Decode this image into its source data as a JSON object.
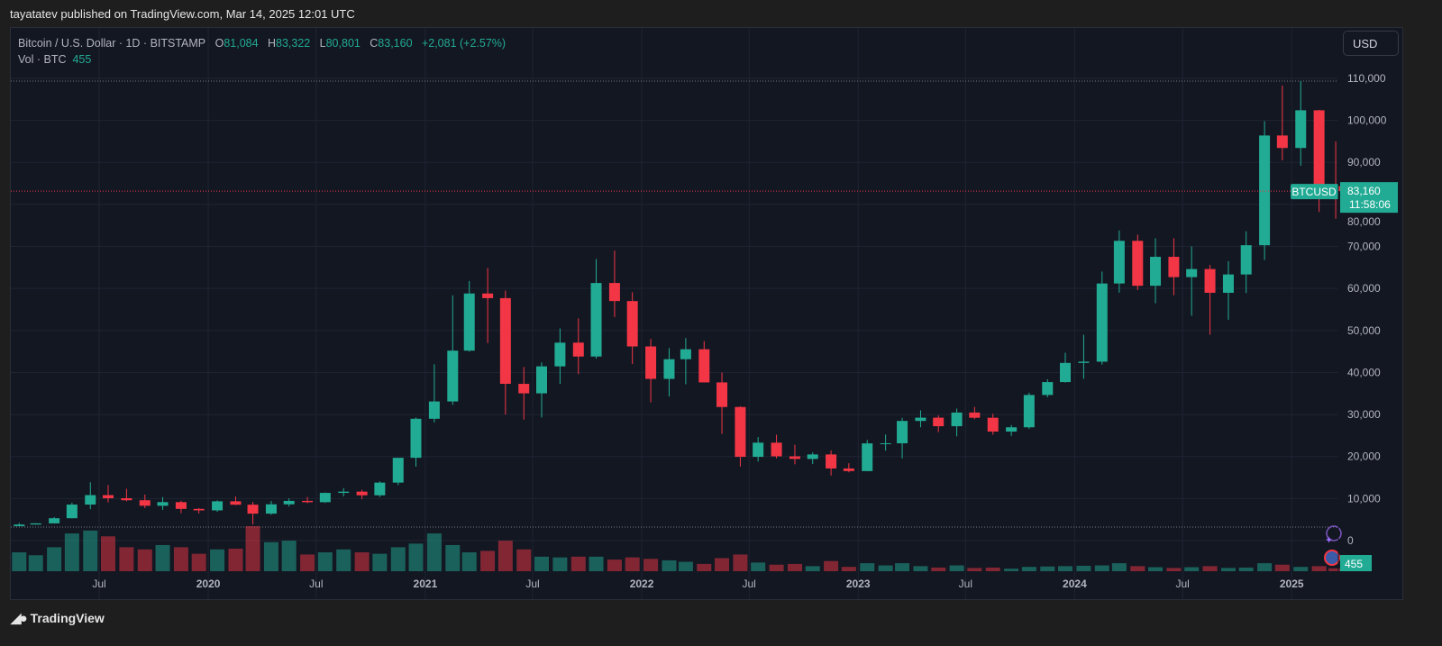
{
  "header": {
    "published": "tayatatev published on TradingView.com, Mar 14, 2025 12:01 UTC"
  },
  "legend": {
    "symbol": "Bitcoin / U.S. Dollar · 1D · BITSTAMP",
    "o_label": "O",
    "o": "81,084",
    "h_label": "H",
    "h": "83,322",
    "l_label": "L",
    "l": "80,801",
    "c_label": "C",
    "c": "83,160",
    "change": "+2,081 (+2.57%)",
    "vol_label": "Vol · BTC",
    "vol": "455"
  },
  "currency_button": "USD",
  "price_tag": {
    "symbol": "BTCUSD",
    "price": "83,160",
    "countdown": "11:58:06"
  },
  "volume_tag": "455",
  "footer": {
    "brand": "TradingView"
  },
  "colors": {
    "up": "#22ab94",
    "down": "#f23645",
    "background": "#131722",
    "grid": "#1f2433"
  },
  "chart_data": {
    "type": "candlestick",
    "yticks": [
      "110,000",
      "100,000",
      "90,000",
      "80,000",
      "70,000",
      "60,000",
      "50,000",
      "40,000",
      "30,000",
      "20,000",
      "10,000",
      "0"
    ],
    "ytick_values": [
      110000,
      100000,
      90000,
      80000,
      70000,
      60000,
      50000,
      40000,
      30000,
      20000,
      10000,
      0
    ],
    "xticks": [
      {
        "label": "Jul",
        "date": "2019-07"
      },
      {
        "label": "2020",
        "date": "2020-01"
      },
      {
        "label": "Jul",
        "date": "2020-07"
      },
      {
        "label": "2021",
        "date": "2021-01"
      },
      {
        "label": "Jul",
        "date": "2021-07"
      },
      {
        "label": "2022",
        "date": "2022-01"
      },
      {
        "label": "Jul",
        "date": "2022-07"
      },
      {
        "label": "2023",
        "date": "2023-01"
      },
      {
        "label": "Jul",
        "date": "2023-07"
      },
      {
        "label": "2024",
        "date": "2024-01"
      },
      {
        "label": "Jul",
        "date": "2024-07"
      },
      {
        "label": "2025",
        "date": "2025-01"
      }
    ],
    "ylim": [
      0,
      110000
    ],
    "grid": true,
    "last_price": 83160,
    "high_line": 109350,
    "series_note_columns": [
      "month",
      "open",
      "high",
      "low",
      "close",
      "volume"
    ],
    "ohlc": [
      [
        "2019-02",
        3437,
        4200,
        3400,
        3820,
        260
      ],
      [
        "2019-03",
        3820,
        4100,
        3850,
        4100,
        220
      ],
      [
        "2019-04",
        4100,
        5600,
        4080,
        5320,
        330
      ],
      [
        "2019-05",
        5320,
        9000,
        5300,
        8570,
        520
      ],
      [
        "2019-06",
        8570,
        13880,
        7480,
        10820,
        560
      ],
      [
        "2019-07",
        10820,
        13200,
        9080,
        10080,
        480
      ],
      [
        "2019-08",
        10080,
        12320,
        9350,
        9600,
        330
      ],
      [
        "2019-09",
        9600,
        10950,
        7730,
        8290,
        300
      ],
      [
        "2019-10",
        8290,
        10370,
        7300,
        9150,
        360
      ],
      [
        "2019-11",
        9150,
        9500,
        6520,
        7540,
        330
      ],
      [
        "2019-12",
        7540,
        7750,
        6430,
        7190,
        240
      ],
      [
        "2020-01",
        7190,
        9580,
        6860,
        9350,
        300
      ],
      [
        "2020-02",
        9350,
        10500,
        8450,
        8540,
        310
      ],
      [
        "2020-03",
        8540,
        9190,
        3850,
        6410,
        620
      ],
      [
        "2020-04",
        6410,
        9460,
        6150,
        8630,
        400
      ],
      [
        "2020-05",
        8630,
        10060,
        8100,
        9450,
        420
      ],
      [
        "2020-06",
        9450,
        10380,
        8900,
        9140,
        230
      ],
      [
        "2020-07",
        9140,
        11440,
        8980,
        11350,
        260
      ],
      [
        "2020-08",
        11350,
        12480,
        10520,
        11650,
        300
      ],
      [
        "2020-09",
        11650,
        12090,
        9880,
        10780,
        260
      ],
      [
        "2020-10",
        10780,
        14100,
        10380,
        13800,
        240
      ],
      [
        "2020-11",
        13800,
        19480,
        13200,
        19700,
        330
      ],
      [
        "2020-12",
        19700,
        29300,
        17600,
        28990,
        380
      ],
      [
        "2021-01",
        28990,
        41950,
        28130,
        33110,
        520
      ],
      [
        "2021-02",
        33110,
        58350,
        32300,
        45200,
        360
      ],
      [
        "2021-03",
        45200,
        61780,
        44950,
        58800,
        260
      ],
      [
        "2021-04",
        58800,
        64900,
        47000,
        57700,
        280
      ],
      [
        "2021-05",
        57700,
        59500,
        30000,
        37300,
        420
      ],
      [
        "2021-06",
        37300,
        41300,
        28800,
        35040,
        300
      ],
      [
        "2021-07",
        35040,
        42400,
        29300,
        41460,
        200
      ],
      [
        "2021-08",
        41460,
        50500,
        37300,
        47100,
        190
      ],
      [
        "2021-09",
        47100,
        52900,
        39600,
        43800,
        200
      ],
      [
        "2021-10",
        43800,
        67000,
        43300,
        61300,
        200
      ],
      [
        "2021-11",
        61300,
        69000,
        53200,
        57000,
        160
      ],
      [
        "2021-12",
        57000,
        59100,
        42000,
        46200,
        190
      ],
      [
        "2022-01",
        46200,
        47990,
        32900,
        38480,
        170
      ],
      [
        "2022-02",
        38480,
        45800,
        34300,
        43160,
        150
      ],
      [
        "2022-03",
        43160,
        48200,
        37200,
        45530,
        130
      ],
      [
        "2022-04",
        45530,
        47450,
        37700,
        37640,
        100
      ],
      [
        "2022-05",
        37640,
        40000,
        25400,
        31790,
        180
      ],
      [
        "2022-06",
        31790,
        31950,
        17600,
        19930,
        230
      ],
      [
        "2022-07",
        19930,
        24650,
        18800,
        23300,
        120
      ],
      [
        "2022-08",
        23300,
        25200,
        19550,
        20050,
        90
      ],
      [
        "2022-09",
        20050,
        22800,
        18150,
        19430,
        100
      ],
      [
        "2022-10",
        19430,
        20990,
        18200,
        20500,
        70
      ],
      [
        "2022-11",
        20500,
        21450,
        15480,
        17160,
        140
      ],
      [
        "2022-12",
        17160,
        18400,
        16250,
        16540,
        60
      ],
      [
        "2023-01",
        16540,
        23950,
        16500,
        23130,
        110
      ],
      [
        "2023-02",
        23130,
        25250,
        21400,
        23150,
        80
      ],
      [
        "2023-03",
        23150,
        29200,
        19550,
        28470,
        110
      ],
      [
        "2023-04",
        28470,
        31000,
        26950,
        29250,
        70
      ],
      [
        "2023-05",
        29250,
        29800,
        25800,
        27220,
        50
      ],
      [
        "2023-06",
        27220,
        31400,
        24800,
        30470,
        80
      ],
      [
        "2023-07",
        30470,
        31800,
        28900,
        29230,
        45
      ],
      [
        "2023-08",
        29230,
        30200,
        25200,
        25940,
        50
      ],
      [
        "2023-09",
        25940,
        27500,
        24900,
        26960,
        35
      ],
      [
        "2023-10",
        26960,
        35200,
        26560,
        34650,
        60
      ],
      [
        "2023-11",
        34650,
        38400,
        34100,
        37720,
        65
      ],
      [
        "2023-12",
        37720,
        44700,
        37600,
        42280,
        70
      ],
      [
        "2024-01",
        42280,
        48970,
        38500,
        42580,
        75
      ],
      [
        "2024-02",
        42580,
        64000,
        41880,
        61180,
        80
      ],
      [
        "2024-03",
        61180,
        73800,
        59000,
        71330,
        110
      ],
      [
        "2024-04",
        71330,
        72800,
        59600,
        60640,
        70
      ],
      [
        "2024-05",
        60640,
        71950,
        56500,
        67530,
        55
      ],
      [
        "2024-06",
        67530,
        71950,
        58400,
        62700,
        45
      ],
      [
        "2024-07",
        62700,
        70000,
        53500,
        64620,
        55
      ],
      [
        "2024-08",
        64620,
        65600,
        49000,
        58970,
        70
      ],
      [
        "2024-09",
        58970,
        66500,
        52550,
        63330,
        45
      ],
      [
        "2024-10",
        63330,
        73600,
        58900,
        70290,
        50
      ],
      [
        "2024-11",
        70290,
        99800,
        66800,
        96400,
        110
      ],
      [
        "2024-12",
        96400,
        108300,
        90500,
        93430,
        90
      ],
      [
        "2025-01",
        93430,
        109350,
        89200,
        102400,
        60
      ],
      [
        "2025-02",
        102400,
        102500,
        78200,
        84350,
        70
      ],
      [
        "2025-03",
        84350,
        95000,
        76600,
        83160,
        40
      ]
    ]
  }
}
